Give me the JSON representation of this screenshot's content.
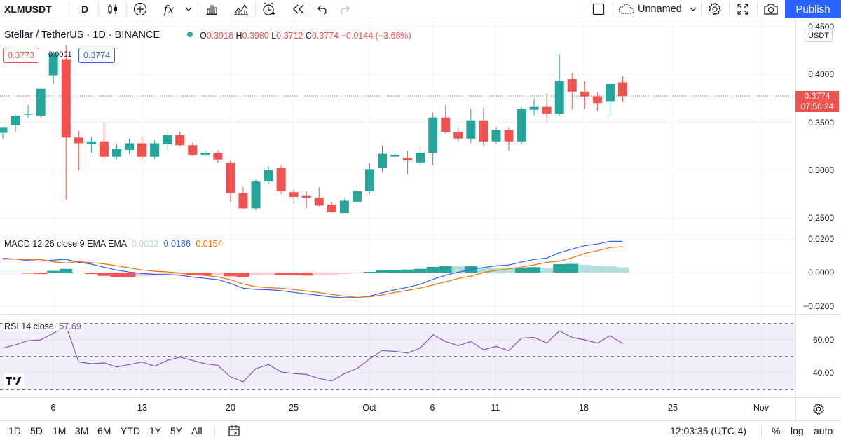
{
  "toolbar": {
    "symbol": "XLMUSDT",
    "interval": "D",
    "layout_name": "Unnamed",
    "publish_label": "Publish",
    "icons": [
      "candles-icon",
      "add-indicator-icon",
      "fx-indicators-icon",
      "chevron-down-icon",
      "bar-chart-icon",
      "templates-icon",
      "alert-icon",
      "replay-icon",
      "undo-icon",
      "redo-icon",
      "layout-square-icon",
      "cloud-icon",
      "chevron-down-icon",
      "settings-gear-icon",
      "fullscreen-icon",
      "camera-icon"
    ]
  },
  "legend": {
    "title": "Stellar / TetherUS · 1D · BINANCE",
    "o_label": "O",
    "o_value": "0.3918",
    "h_label": "H",
    "h_value": "0.3980",
    "l_label": "L",
    "l_value": "0.3712",
    "c_label": "C",
    "c_value": "0.3774",
    "change": "−0.0144 (−3.68%)",
    "bid": "0.3773",
    "spread": "0.0001",
    "ask": "0.3774"
  },
  "macd_legend": {
    "title": "MACD 12 26 close 9 EMA EMA",
    "hist": "0.0032",
    "macd": "0.0186",
    "signal": "0.0154"
  },
  "rsi_legend": {
    "title": "RSI 14 close",
    "value": "57.69"
  },
  "price_axis": {
    "unit": "USDT",
    "labels": [
      "0.4500",
      "0.4000",
      "0.3500",
      "0.3000",
      "0.2500"
    ],
    "current_price": "0.3774",
    "countdown": "07:56:24"
  },
  "macd_axis": {
    "labels": [
      "0.0200",
      "0.0000",
      "−0.0200"
    ]
  },
  "rsi_axis": {
    "labels": [
      "60.00",
      "40.00"
    ]
  },
  "x_axis": {
    "labels": [
      "6",
      "13",
      "20",
      "25",
      "Oct",
      "6",
      "11",
      "18",
      "25",
      "Nov"
    ]
  },
  "bottom": {
    "ranges": [
      "1D",
      "5D",
      "1M",
      "3M",
      "6M",
      "YTD",
      "1Y",
      "5Y",
      "All"
    ],
    "time": "12:03:35 (UTC-4)",
    "percent": "%",
    "log": "log",
    "auto": "auto"
  },
  "colors": {
    "up": "#26a69a",
    "down": "#ef5350",
    "accent": "#2962ff",
    "macd": "#2962ff",
    "signal": "#ff6d00",
    "rsi": "#7e57c2"
  },
  "chart_data": {
    "type": "candlestick",
    "title": "Stellar / TetherUS · 1D · BINANCE",
    "ylim": [
      0.24,
      0.45
    ],
    "candles": [
      {
        "o": 0.339,
        "h": 0.345,
        "l": 0.333,
        "c": 0.345
      },
      {
        "o": 0.347,
        "h": 0.358,
        "l": 0.34,
        "c": 0.357
      },
      {
        "o": 0.358,
        "h": 0.368,
        "l": 0.355,
        "c": 0.359
      },
      {
        "o": 0.357,
        "h": 0.385,
        "l": 0.355,
        "c": 0.385
      },
      {
        "o": 0.399,
        "h": 0.424,
        "l": 0.39,
        "c": 0.422
      },
      {
        "o": 0.416,
        "h": 0.431,
        "l": 0.269,
        "c": 0.334
      },
      {
        "o": 0.334,
        "h": 0.341,
        "l": 0.3,
        "c": 0.328
      },
      {
        "o": 0.327,
        "h": 0.335,
        "l": 0.318,
        "c": 0.33
      },
      {
        "o": 0.33,
        "h": 0.35,
        "l": 0.311,
        "c": 0.314
      },
      {
        "o": 0.314,
        "h": 0.327,
        "l": 0.312,
        "c": 0.322
      },
      {
        "o": 0.321,
        "h": 0.333,
        "l": 0.317,
        "c": 0.328
      },
      {
        "o": 0.328,
        "h": 0.335,
        "l": 0.311,
        "c": 0.314
      },
      {
        "o": 0.314,
        "h": 0.331,
        "l": 0.312,
        "c": 0.328
      },
      {
        "o": 0.327,
        "h": 0.34,
        "l": 0.32,
        "c": 0.337
      },
      {
        "o": 0.337,
        "h": 0.34,
        "l": 0.325,
        "c": 0.326
      },
      {
        "o": 0.326,
        "h": 0.329,
        "l": 0.315,
        "c": 0.316
      },
      {
        "o": 0.316,
        "h": 0.32,
        "l": 0.314,
        "c": 0.318
      },
      {
        "o": 0.318,
        "h": 0.321,
        "l": 0.308,
        "c": 0.311
      },
      {
        "o": 0.308,
        "h": 0.31,
        "l": 0.267,
        "c": 0.276
      },
      {
        "o": 0.276,
        "h": 0.282,
        "l": 0.259,
        "c": 0.26
      },
      {
        "o": 0.26,
        "h": 0.29,
        "l": 0.258,
        "c": 0.288
      },
      {
        "o": 0.288,
        "h": 0.304,
        "l": 0.285,
        "c": 0.3
      },
      {
        "o": 0.302,
        "h": 0.305,
        "l": 0.275,
        "c": 0.278
      },
      {
        "o": 0.277,
        "h": 0.28,
        "l": 0.265,
        "c": 0.272
      },
      {
        "o": 0.273,
        "h": 0.278,
        "l": 0.26,
        "c": 0.271
      },
      {
        "o": 0.271,
        "h": 0.282,
        "l": 0.262,
        "c": 0.263
      },
      {
        "o": 0.264,
        "h": 0.267,
        "l": 0.255,
        "c": 0.256
      },
      {
        "o": 0.255,
        "h": 0.27,
        "l": 0.255,
        "c": 0.268
      },
      {
        "o": 0.267,
        "h": 0.28,
        "l": 0.265,
        "c": 0.278
      },
      {
        "o": 0.278,
        "h": 0.307,
        "l": 0.275,
        "c": 0.301
      },
      {
        "o": 0.302,
        "h": 0.326,
        "l": 0.298,
        "c": 0.317
      },
      {
        "o": 0.314,
        "h": 0.32,
        "l": 0.31,
        "c": 0.316
      },
      {
        "o": 0.313,
        "h": 0.32,
        "l": 0.296,
        "c": 0.31
      },
      {
        "o": 0.308,
        "h": 0.325,
        "l": 0.305,
        "c": 0.318
      },
      {
        "o": 0.318,
        "h": 0.36,
        "l": 0.305,
        "c": 0.355
      },
      {
        "o": 0.355,
        "h": 0.368,
        "l": 0.338,
        "c": 0.34
      },
      {
        "o": 0.34,
        "h": 0.345,
        "l": 0.33,
        "c": 0.333
      },
      {
        "o": 0.333,
        "h": 0.364,
        "l": 0.328,
        "c": 0.352
      },
      {
        "o": 0.352,
        "h": 0.365,
        "l": 0.325,
        "c": 0.33
      },
      {
        "o": 0.33,
        "h": 0.345,
        "l": 0.328,
        "c": 0.342
      },
      {
        "o": 0.342,
        "h": 0.345,
        "l": 0.32,
        "c": 0.33
      },
      {
        "o": 0.33,
        "h": 0.366,
        "l": 0.327,
        "c": 0.364
      },
      {
        "o": 0.363,
        "h": 0.375,
        "l": 0.357,
        "c": 0.366
      },
      {
        "o": 0.366,
        "h": 0.38,
        "l": 0.35,
        "c": 0.359
      },
      {
        "o": 0.359,
        "h": 0.421,
        "l": 0.357,
        "c": 0.393
      },
      {
        "o": 0.395,
        "h": 0.402,
        "l": 0.363,
        "c": 0.382
      },
      {
        "o": 0.382,
        "h": 0.393,
        "l": 0.364,
        "c": 0.377
      },
      {
        "o": 0.377,
        "h": 0.381,
        "l": 0.362,
        "c": 0.37
      },
      {
        "o": 0.372,
        "h": 0.389,
        "l": 0.357,
        "c": 0.39
      },
      {
        "o": 0.3918,
        "h": 0.398,
        "l": 0.3712,
        "c": 0.3774
      }
    ],
    "macd": {
      "hist": [
        0.0,
        0.0,
        -0.0006,
        -0.0009,
        0.001,
        0.0022,
        -0.0004,
        -0.0009,
        -0.002,
        -0.0025,
        -0.0025,
        -0.0022,
        -0.0019,
        -0.0016,
        -0.0013,
        -0.0016,
        -0.0017,
        -0.0016,
        -0.0022,
        -0.0025,
        -0.0016,
        -0.0012,
        -0.0015,
        -0.0017,
        -0.0018,
        -0.0017,
        -0.0016,
        -0.0009,
        -0.0003,
        0.0004,
        0.0013,
        0.0016,
        0.0018,
        0.0022,
        0.0034,
        0.0039,
        0.0037,
        0.0039,
        0.003,
        0.0027,
        0.0023,
        0.003,
        0.0032,
        0.0025,
        0.005,
        0.0052,
        0.0046,
        0.004,
        0.0037,
        0.0032
      ],
      "macd": [
        0.0085,
        0.008,
        0.0072,
        0.0068,
        0.0074,
        0.0079,
        0.0061,
        0.005,
        0.0032,
        0.0015,
        0.0003,
        -0.0006,
        -0.0011,
        -0.0012,
        -0.0016,
        -0.0027,
        -0.0034,
        -0.0042,
        -0.0065,
        -0.0093,
        -0.01,
        -0.0102,
        -0.0108,
        -0.0118,
        -0.0127,
        -0.0136,
        -0.0146,
        -0.015,
        -0.015,
        -0.014,
        -0.012,
        -0.0102,
        -0.0088,
        -0.007,
        -0.004,
        -0.0016,
        0.0002,
        0.0018,
        0.003,
        0.004,
        0.0045,
        0.0062,
        0.0078,
        0.0086,
        0.0118,
        0.014,
        0.016,
        0.017,
        0.0186,
        0.0186
      ],
      "signal": [
        0.008,
        0.008,
        0.0078,
        0.0077,
        0.0064,
        0.0057,
        0.0065,
        0.0059,
        0.0052,
        0.004,
        0.0028,
        0.0016,
        0.0008,
        0.0004,
        -0.0003,
        -0.0011,
        -0.0017,
        -0.0026,
        -0.0043,
        -0.0068,
        -0.0084,
        -0.009,
        -0.0093,
        -0.0101,
        -0.0109,
        -0.0119,
        -0.013,
        -0.0141,
        -0.0147,
        -0.0144,
        -0.0133,
        -0.0118,
        -0.0106,
        -0.0092,
        -0.0074,
        -0.0055,
        -0.0035,
        -0.0021,
        0.0,
        0.0013,
        0.0022,
        0.0032,
        0.0046,
        0.0061,
        0.0068,
        0.0088,
        0.0114,
        0.013,
        0.0149,
        0.0154
      ]
    },
    "rsi": [
      55.0,
      57.0,
      59.5,
      60.0,
      64.0,
      68.5,
      46.5,
      45.5,
      46.0,
      43.5,
      45.0,
      46.5,
      44.0,
      47.5,
      49.5,
      47.5,
      45.5,
      44.5,
      37.5,
      34.5,
      42.5,
      45.0,
      40.5,
      39.5,
      39.0,
      36.5,
      35.0,
      39.5,
      42.5,
      48.5,
      53.5,
      53.0,
      52.0,
      55.0,
      63.0,
      59.0,
      56.5,
      59.0,
      54.0,
      56.0,
      53.5,
      61.0,
      61.5,
      58.0,
      65.5,
      61.5,
      60.0,
      58.0,
      62.5,
      57.69
    ],
    "rsi_bands": [
      70,
      50,
      30
    ]
  }
}
